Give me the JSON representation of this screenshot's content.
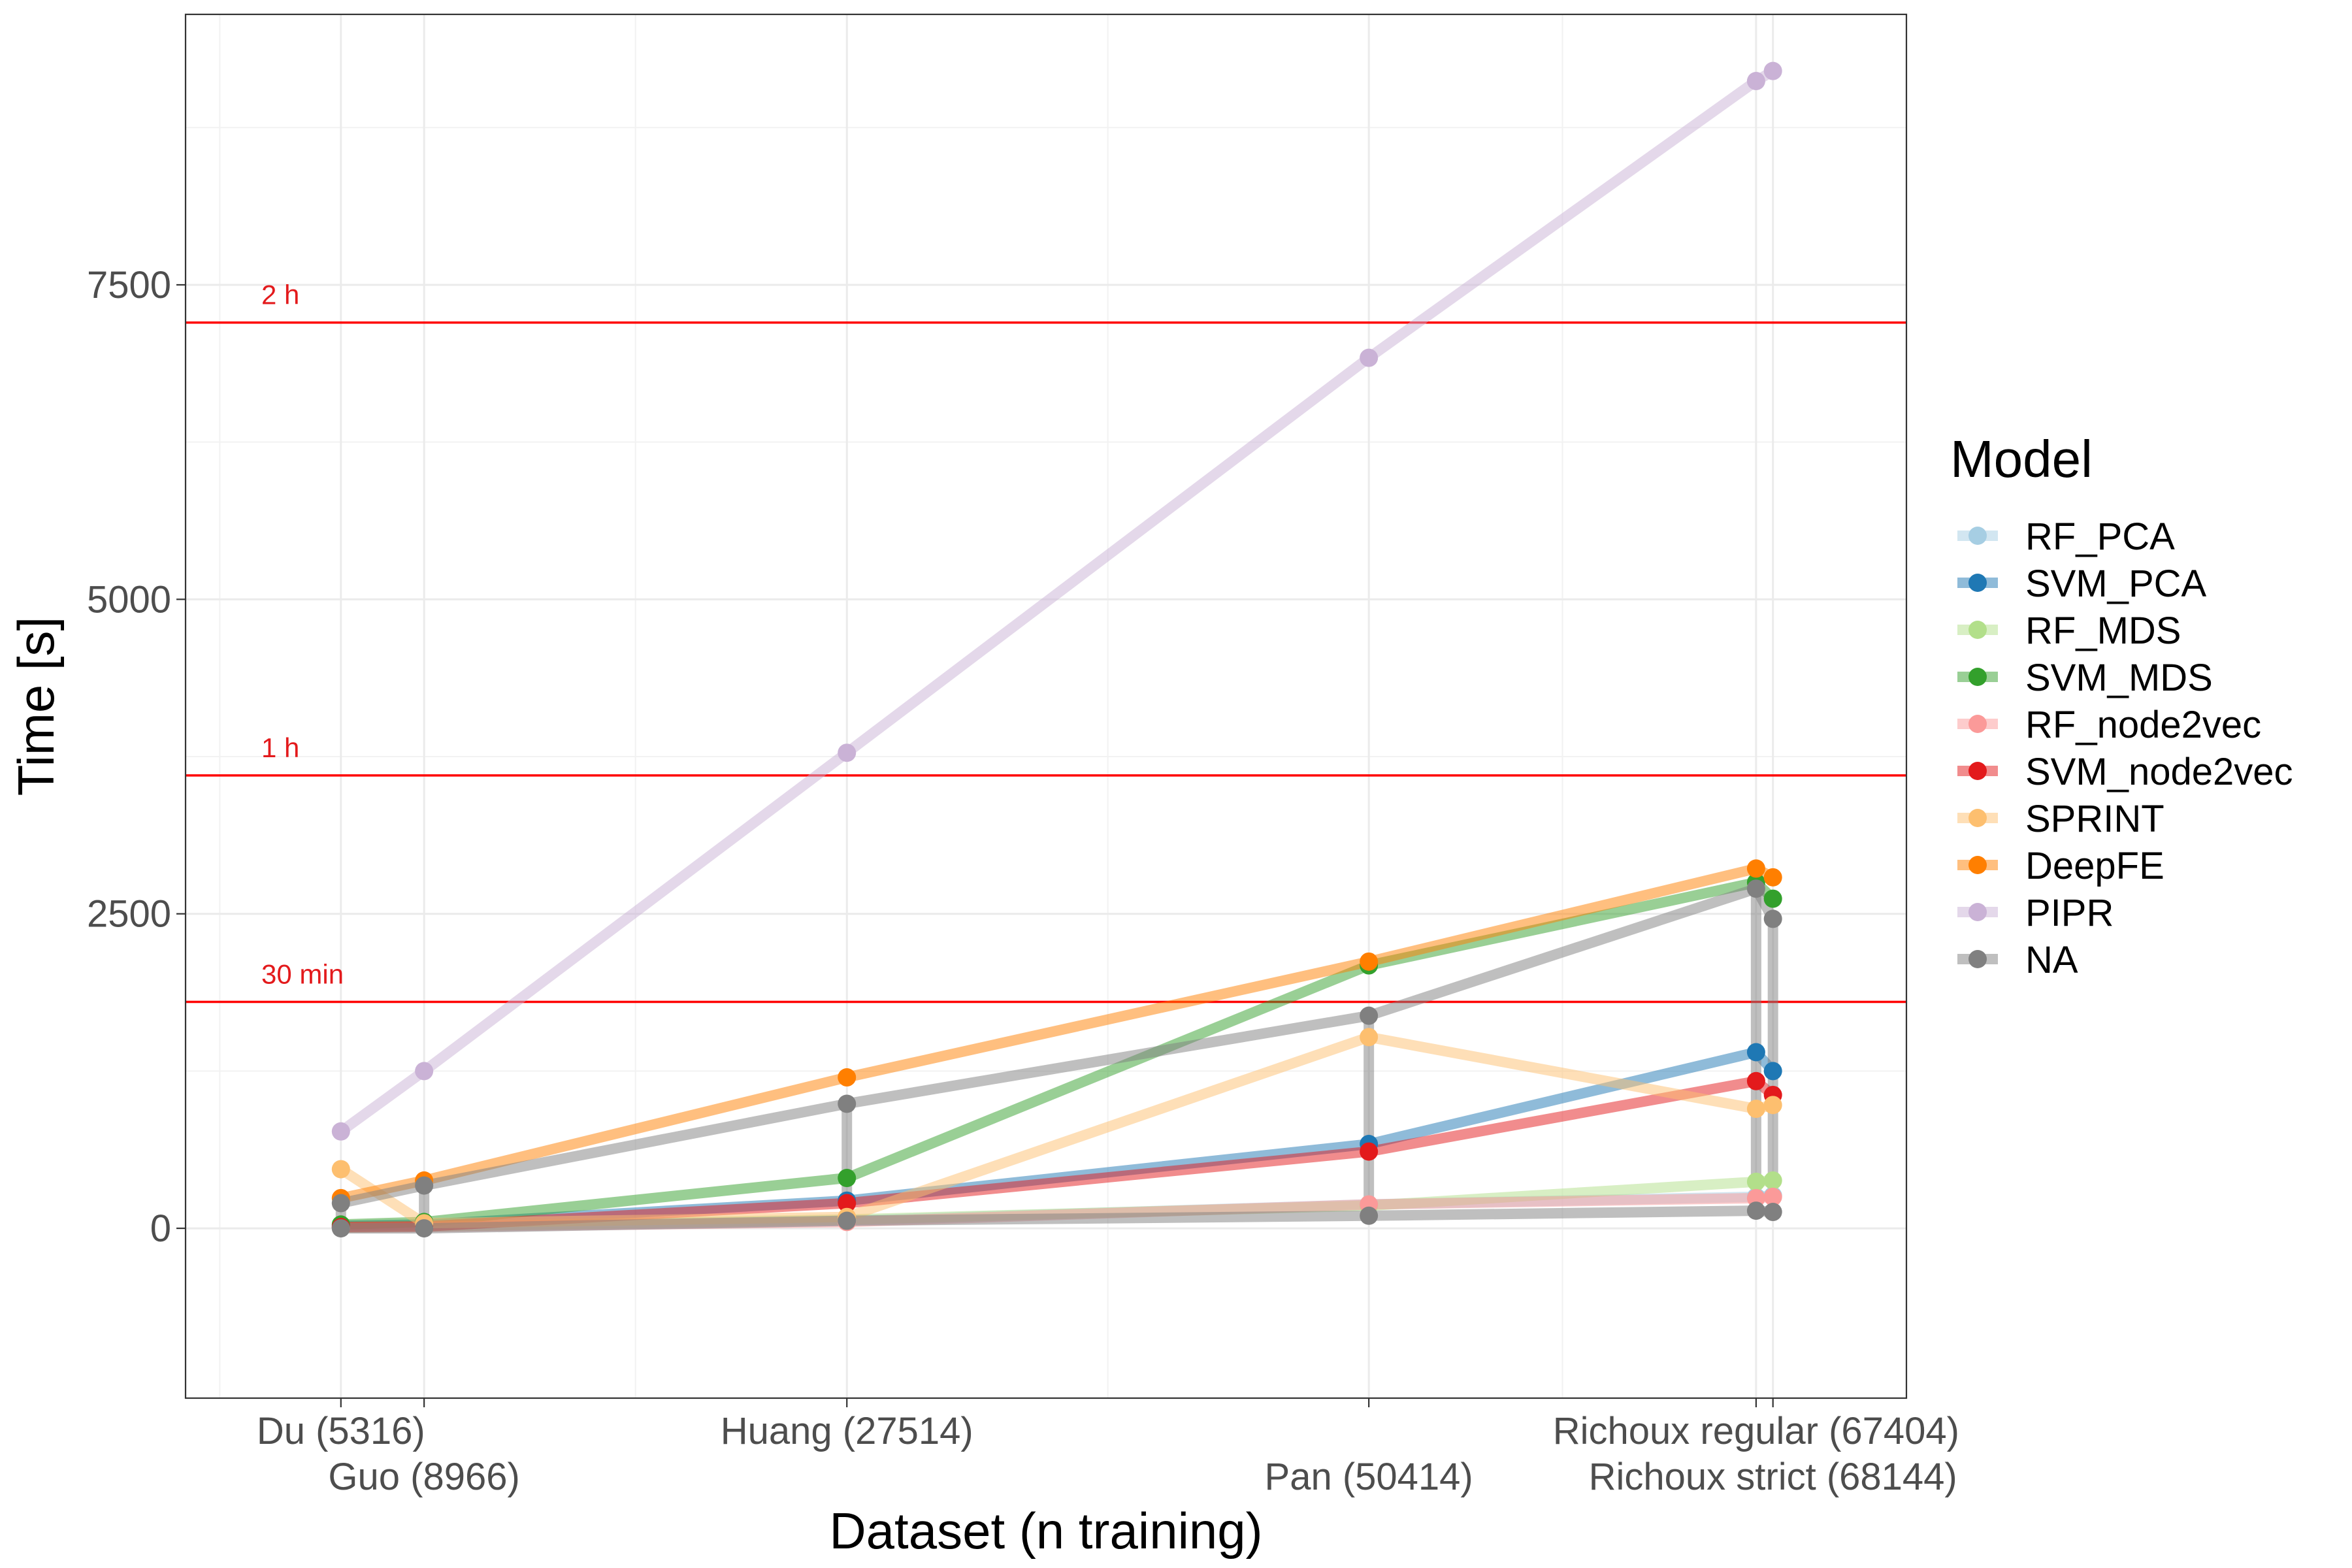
{
  "chart_data": {
    "type": "line",
    "title": "",
    "xlabel": "Dataset (n training)",
    "ylabel": "Time [s]",
    "x_scale": "linear",
    "xlim": [
      -1500,
      74000
    ],
    "ylim": [
      -1350,
      9650
    ],
    "grid": true,
    "legend": {
      "title": "Model",
      "position": "right"
    },
    "y_ticks": [
      0,
      2500,
      5000,
      7500
    ],
    "datasets": [
      {
        "label": "Du (5316)",
        "n": 5316
      },
      {
        "label": "Guo (8966)",
        "n": 8966
      },
      {
        "label": "Huang (27514)",
        "n": 27514
      },
      {
        "label": "Pan (50414)",
        "n": 50414
      },
      {
        "label": "Richoux regular (67404)",
        "n": 67404
      },
      {
        "label": "Richoux strict (68144)",
        "n": 68144
      }
    ],
    "reference_lines": [
      {
        "label": "30 min",
        "value": 1800,
        "color": "#ff0000"
      },
      {
        "label": "1 h",
        "value": 3600,
        "color": "#ff0000"
      },
      {
        "label": "2 h",
        "value": 7200,
        "color": "#ff0000"
      }
    ],
    "series": [
      {
        "name": "RF_PCA",
        "color": "#a6cee3",
        "values": [
          5,
          10,
          60,
          190,
          250,
          260
        ]
      },
      {
        "name": "SVM_PCA",
        "color": "#1f78b4",
        "values": [
          20,
          30,
          220,
          670,
          1400,
          1250
        ]
      },
      {
        "name": "RF_MDS",
        "color": "#b2df8a",
        "values": [
          5,
          15,
          70,
          180,
          370,
          380
        ]
      },
      {
        "name": "SVM_MDS",
        "color": "#33a02c",
        "values": [
          30,
          50,
          400,
          2090,
          2750,
          2620
        ]
      },
      {
        "name": "RF_node2vec",
        "color": "#fb9a99",
        "values": [
          5,
          10,
          50,
          190,
          240,
          250
        ]
      },
      {
        "name": "SVM_node2vec",
        "color": "#e31a1c",
        "values": [
          10,
          15,
          200,
          610,
          1170,
          1060
        ]
      },
      {
        "name": "SPRINT",
        "color": "#fdbf6f",
        "values": [
          470,
          40,
          90,
          1520,
          950,
          980
        ]
      },
      {
        "name": "DeepFE",
        "color": "#ff7f00",
        "values": [
          240,
          380,
          1200,
          2120,
          2860,
          2790
        ]
      },
      {
        "name": "PIPR",
        "color": "#cab2d6",
        "values": [
          770,
          1250,
          3780,
          6920,
          9120,
          9200
        ]
      },
      {
        "name": "NA",
        "color": "#808080",
        "values": [
          200,
          340,
          990,
          1690,
          2700,
          2460
        ],
        "min_values": [
          0,
          0,
          60,
          100,
          140,
          130
        ]
      }
    ]
  }
}
